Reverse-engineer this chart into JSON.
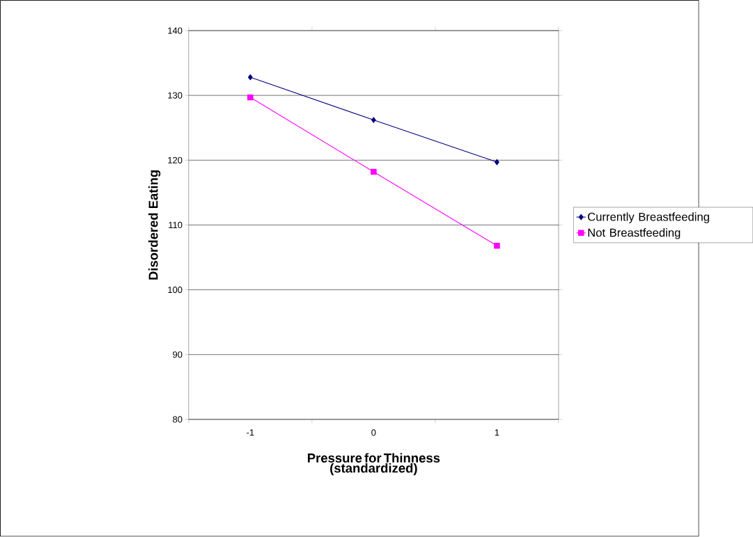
{
  "chart_data": {
    "type": "line",
    "xlabel": "Pressure for Thinness (standardized)",
    "ylabel": "Disordered Eating",
    "categories": [
      "-1",
      "0",
      "1"
    ],
    "series": [
      {
        "name": "Currently Breastfeeding",
        "color": "#000080",
        "marker": "diamond",
        "values": [
          132.8,
          126.2,
          119.7
        ]
      },
      {
        "name": "Not Breastfeeding",
        "color": "#ff00ff",
        "marker": "square",
        "values": [
          129.7,
          118.2,
          106.8
        ]
      }
    ],
    "ylim": [
      80,
      140
    ],
    "yticks": [
      80,
      90,
      100,
      110,
      120,
      130,
      140
    ],
    "grid": "y",
    "legend": "right",
    "line_style": "solid"
  }
}
